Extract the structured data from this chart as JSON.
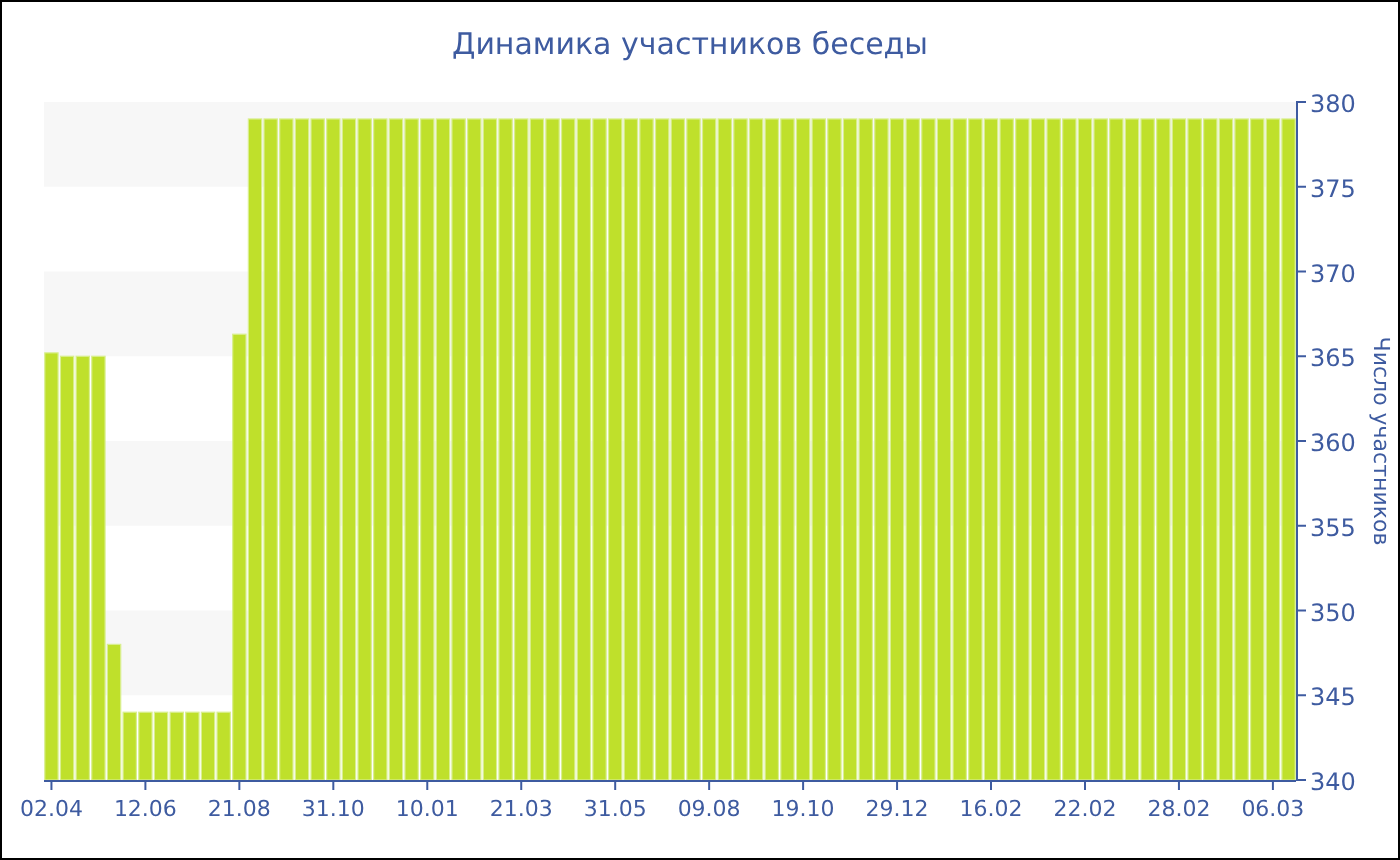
{
  "chart_data": {
    "type": "bar",
    "title": "Динамика участников беседы",
    "ylabel": "Число участников",
    "categories": [
      "02.04",
      null,
      null,
      null,
      null,
      null,
      "12.06",
      null,
      null,
      null,
      null,
      null,
      "21.08",
      null,
      null,
      null,
      null,
      null,
      "31.10",
      null,
      null,
      null,
      null,
      null,
      "10.01",
      null,
      null,
      null,
      null,
      null,
      "21.03",
      null,
      null,
      null,
      null,
      null,
      "31.05",
      null,
      null,
      null,
      null,
      null,
      "09.08",
      null,
      null,
      null,
      null,
      null,
      "19.10",
      null,
      null,
      null,
      null,
      null,
      "29.12",
      null,
      null,
      null,
      null,
      null,
      "16.02",
      null,
      null,
      null,
      null,
      null,
      "22.02",
      null,
      null,
      null,
      null,
      null,
      "28.02",
      null,
      null,
      null,
      null,
      null,
      "06.03",
      null
    ],
    "values": [
      365.2,
      365,
      365,
      365,
      348,
      344,
      344,
      344,
      344,
      344,
      344,
      344,
      366.3,
      379,
      379,
      379,
      379,
      379,
      379,
      379,
      379,
      379,
      379,
      379,
      379,
      379,
      379,
      379,
      379,
      379,
      379,
      379,
      379,
      379,
      379,
      379,
      379,
      379,
      379,
      379,
      379,
      379,
      379,
      379,
      379,
      379,
      379,
      379,
      379,
      379,
      379,
      379,
      379,
      379,
      379,
      379,
      379,
      379,
      379,
      379,
      379,
      379,
      379,
      379,
      379,
      379,
      379,
      379,
      379,
      379,
      379,
      379,
      379,
      379,
      379,
      379,
      379,
      379,
      379,
      379
    ],
    "color": "#bfe02b",
    "ylim": [
      340,
      380
    ],
    "yticks": [
      340,
      345,
      350,
      355,
      360,
      365,
      370,
      375,
      380
    ],
    "bands": [
      {
        "axis": "y",
        "from": 345,
        "to": 350,
        "color": "#f7f7f7"
      },
      {
        "axis": "y",
        "from": 355,
        "to": 360,
        "color": "#f7f7f7"
      },
      {
        "axis": "y",
        "from": 365,
        "to": 370,
        "color": "#f7f7f7"
      },
      {
        "axis": "y",
        "from": 375,
        "to": 380,
        "color": "#f7f7f7"
      }
    ],
    "grid": false
  }
}
